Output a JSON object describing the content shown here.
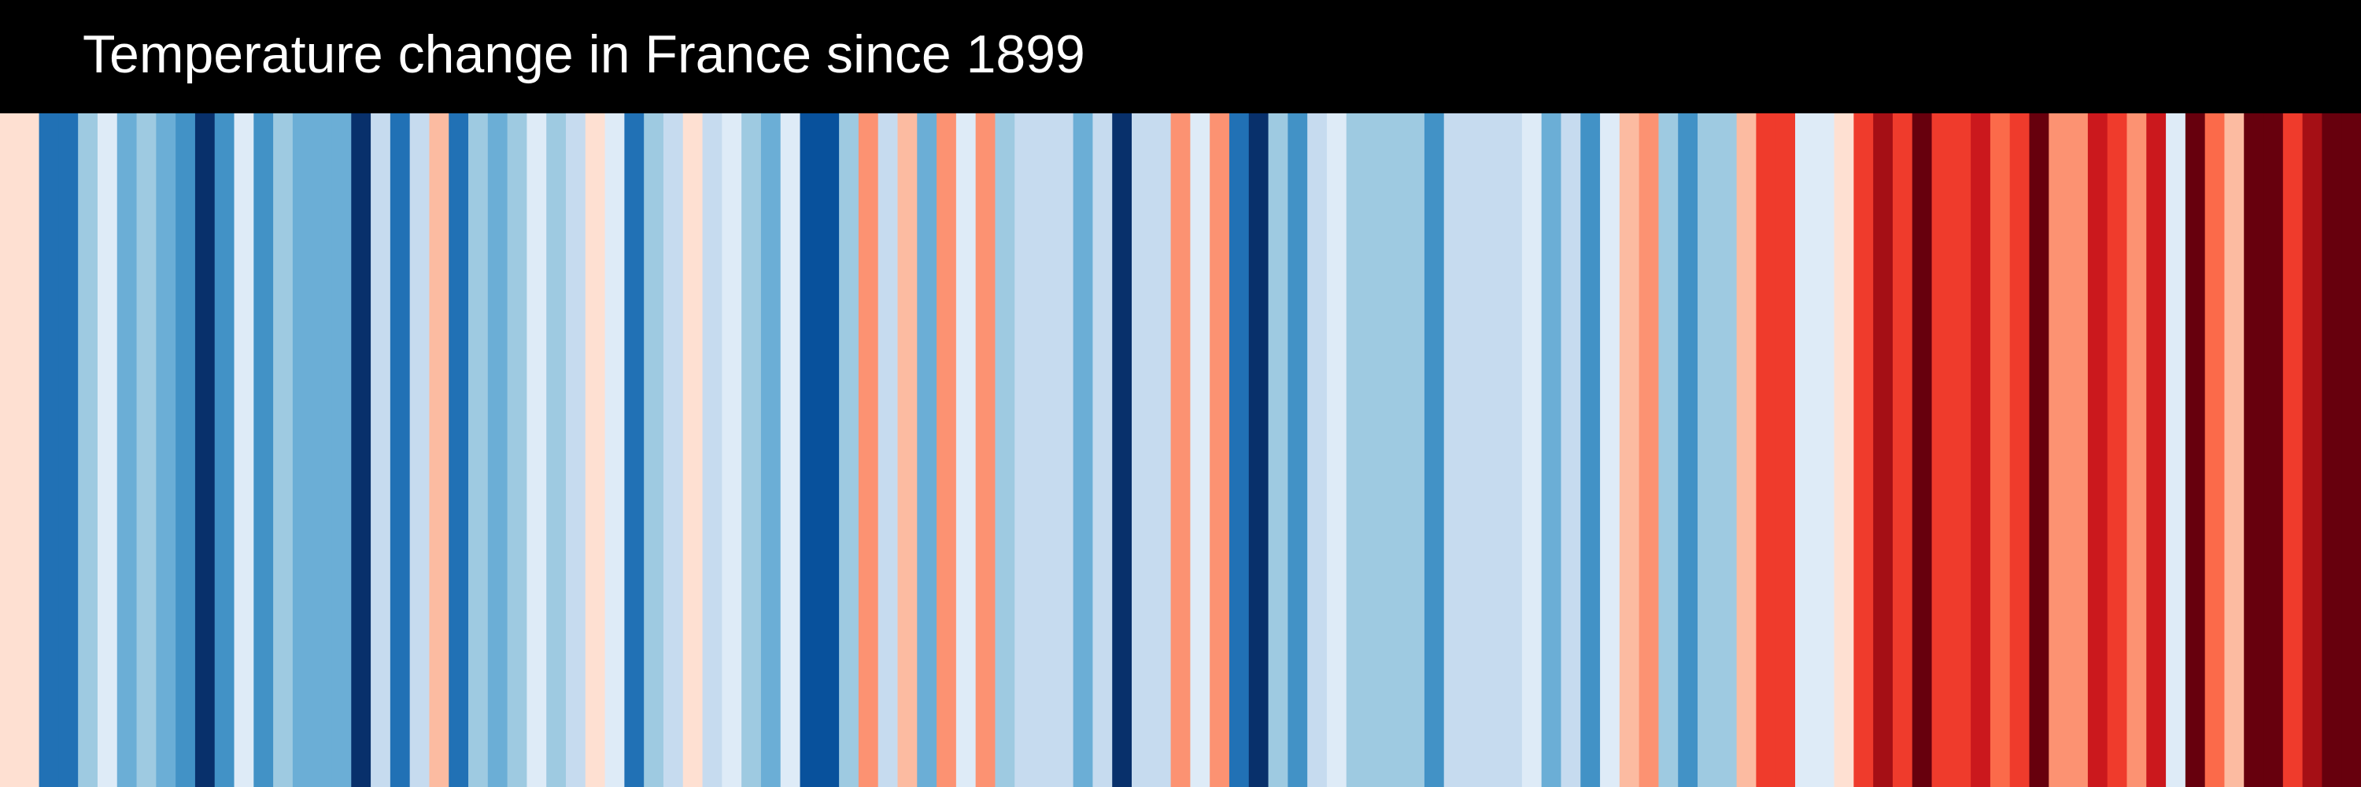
{
  "chart_data": {
    "type": "stripes",
    "title": "Temperature change in France since 1899",
    "colors": [
      "#fee0d2",
      "#fee0d2",
      "#2171b5",
      "#2171b5",
      "#9ecae1",
      "#deebf7",
      "#6baed6",
      "#9ecae1",
      "#6baed6",
      "#4292c6",
      "#08306b",
      "#4292c6",
      "#deebf7",
      "#4292c6",
      "#9ecae1",
      "#6baed6",
      "#6baed6",
      "#6baed6",
      "#08306b",
      "#c6dbef",
      "#2171b5",
      "#c6dbef",
      "#fcbba1",
      "#2171b5",
      "#9ecae1",
      "#6baed6",
      "#9ecae1",
      "#deebf7",
      "#9ecae1",
      "#c6dbef",
      "#fee0d2",
      "#deebf7",
      "#2171b5",
      "#9ecae1",
      "#c6dbef",
      "#fee0d2",
      "#c6dbef",
      "#deebf7",
      "#9ecae1",
      "#6baed6",
      "#deebf7",
      "#08519c",
      "#08519c",
      "#9ecae1",
      "#fc9272",
      "#c6dbef",
      "#fcbba1",
      "#6baed6",
      "#fc9272",
      "#deebf7",
      "#fc9272",
      "#9ecae1",
      "#c6dbef",
      "#c6dbef",
      "#c6dbef",
      "#6baed6",
      "#c6dbef",
      "#08306b",
      "#c6dbef",
      "#c6dbef",
      "#fc9272",
      "#deebf7",
      "#fc9272",
      "#2171b5",
      "#08306b",
      "#9ecae1",
      "#4292c6",
      "#c6dbef",
      "#deebf7",
      "#9ecae1",
      "#9ecae1",
      "#9ecae1",
      "#9ecae1",
      "#4292c6",
      "#c6dbef",
      "#c6dbef",
      "#c6dbef",
      "#c6dbef",
      "#deebf7",
      "#6baed6",
      "#c6dbef",
      "#4292c6",
      "#deebf7",
      "#fcbba1",
      "#fc9272",
      "#9ecae1",
      "#4292c6",
      "#9ecae1",
      "#9ecae1",
      "#fcbba1",
      "#ef3b2c",
      "#ef3b2c",
      "#deebf7",
      "#deebf7",
      "#fee0d2",
      "#ef3b2c",
      "#a50f15",
      "#ef3b2c",
      "#67000d",
      "#ef3b2c",
      "#ef3b2c",
      "#cb181d",
      "#fb6a4a",
      "#ef3b2c",
      "#67000d",
      "#fc9272",
      "#fc9272",
      "#cb181d",
      "#ef3b2c",
      "#fc9272",
      "#cb181d",
      "#deebf7",
      "#67000d",
      "#fb6a4a",
      "#fcbba1",
      "#67000d",
      "#67000d",
      "#ef3b2c",
      "#a50f15",
      "#67000d",
      "#67000d"
    ]
  }
}
